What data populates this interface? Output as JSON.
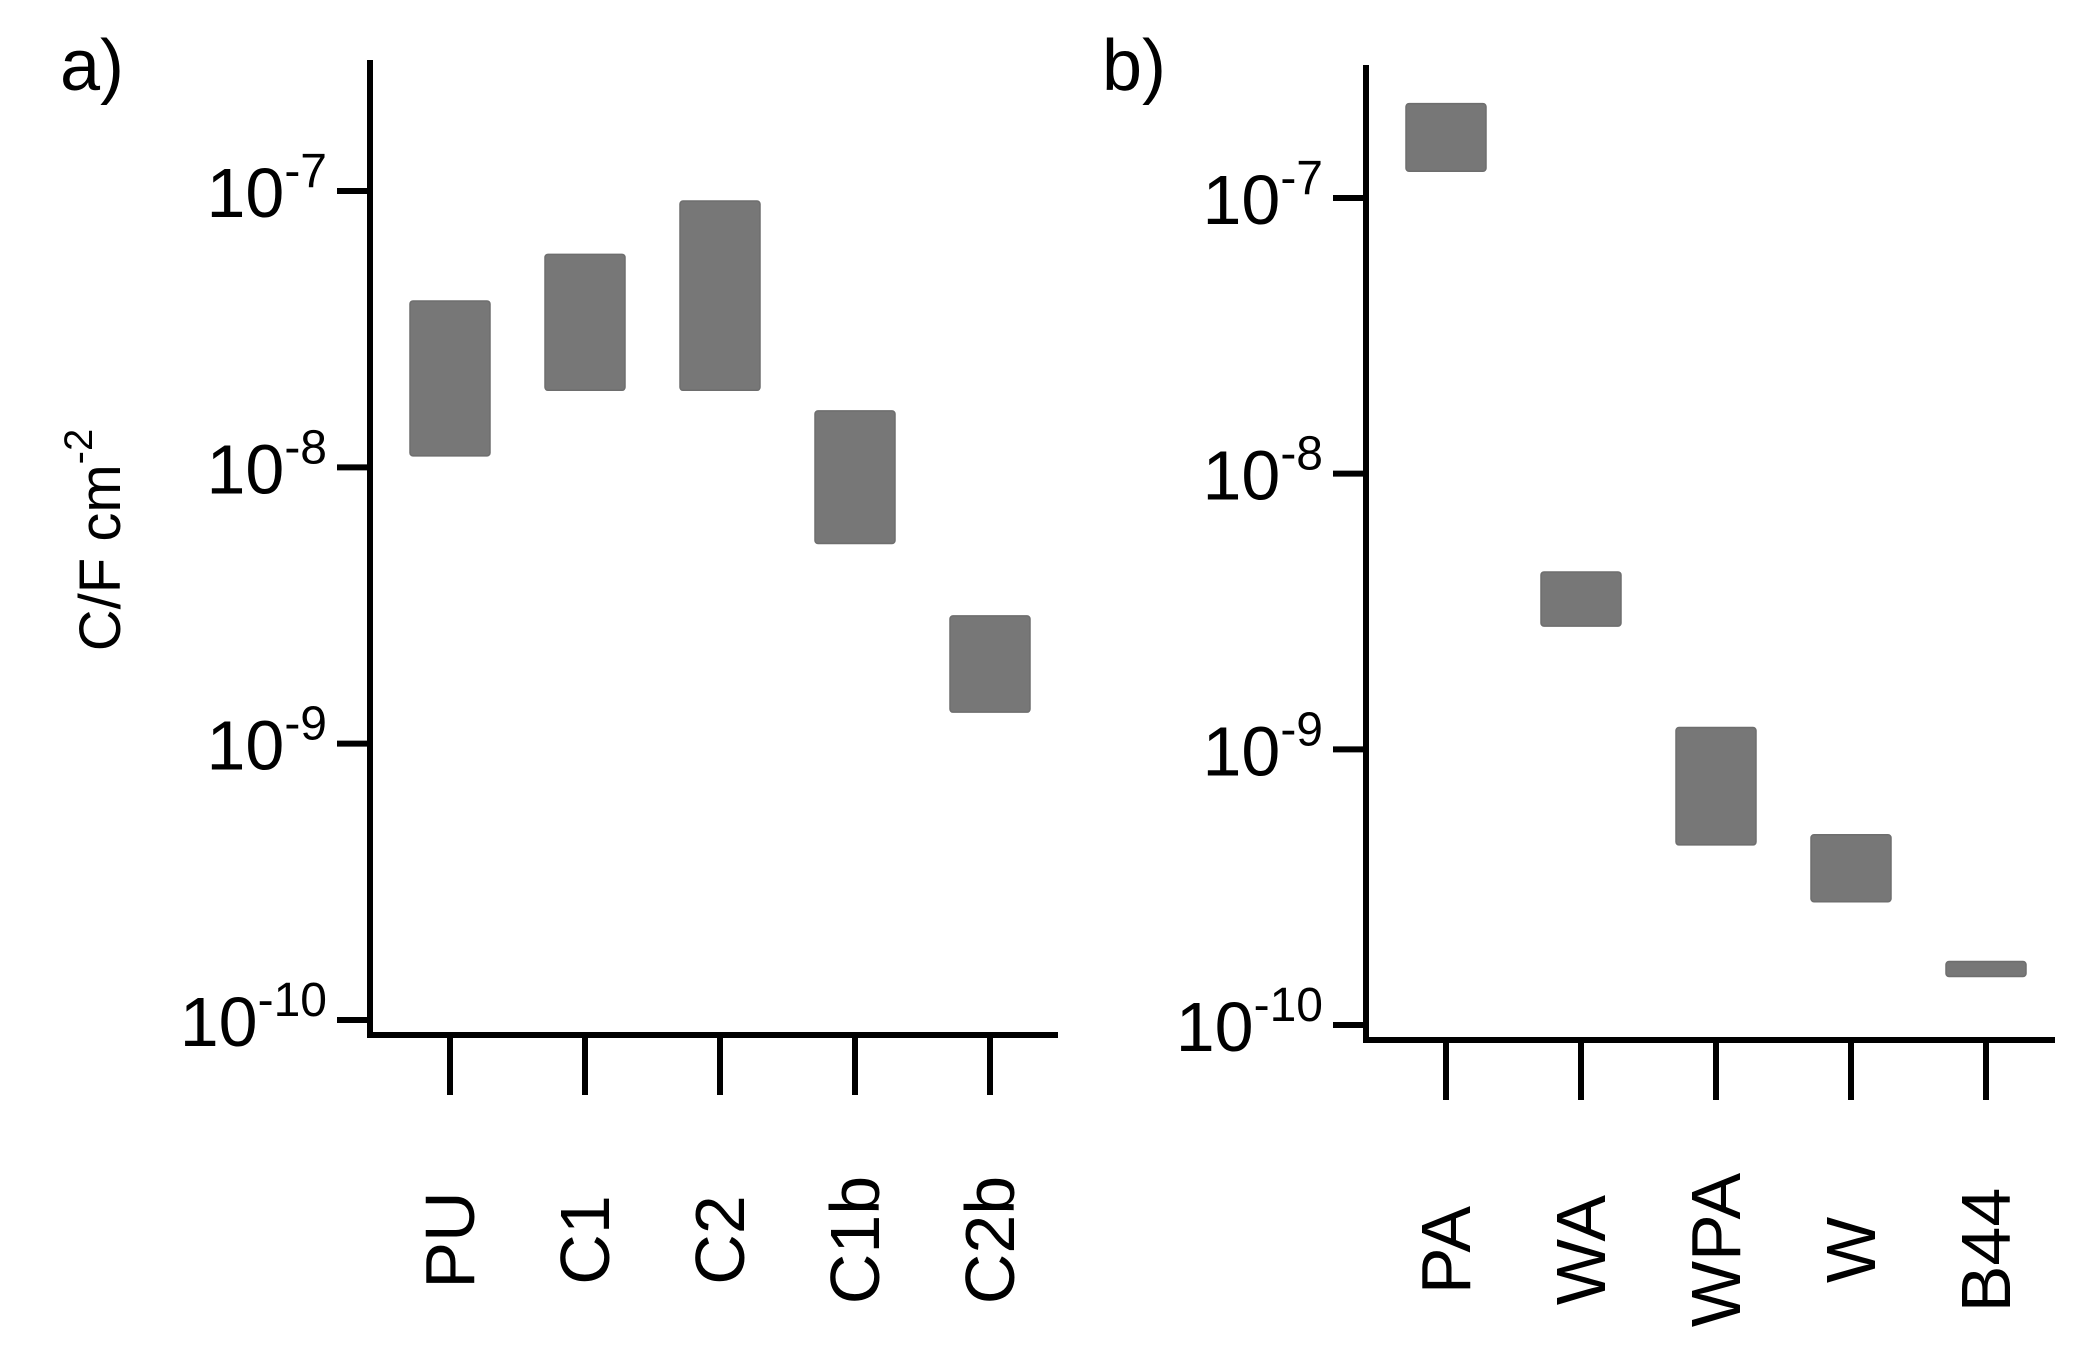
{
  "chart_data": [
    {
      "type": "bar",
      "panel_label": "a)",
      "scale": "log",
      "ylabel": "C/F cm",
      "ylabel_exponent": "-2",
      "ylim": [
        1e-10,
        3e-07
      ],
      "y_ticks": [
        {
          "value": 1e-07,
          "base": "10",
          "exp": "-7"
        },
        {
          "value": 1e-08,
          "base": "10",
          "exp": "-8"
        },
        {
          "value": 1e-09,
          "base": "10",
          "exp": "-9"
        },
        {
          "value": 1e-10,
          "base": "10",
          "exp": "-10"
        }
      ],
      "categories": [
        "PU",
        "C1",
        "C2",
        "C1b",
        "C2b"
      ],
      "ranges": [
        {
          "low": 1.1e-08,
          "high": 4e-08
        },
        {
          "low": 1.9e-08,
          "high": 5.9e-08
        },
        {
          "low": 1.9e-08,
          "high": 9.2e-08
        },
        {
          "low": 5.3e-09,
          "high": 1.6e-08
        },
        {
          "low": 1.3e-09,
          "high": 2.9e-09
        }
      ],
      "bar_color": "#777777"
    },
    {
      "type": "bar",
      "panel_label": "b)",
      "scale": "log",
      "ylabel": "",
      "ylim": [
        1e-10,
        3e-07
      ],
      "y_ticks": [
        {
          "value": 1e-07,
          "base": "10",
          "exp": "-7"
        },
        {
          "value": 1e-08,
          "base": "10",
          "exp": "-8"
        },
        {
          "value": 1e-09,
          "base": "10",
          "exp": "-9"
        },
        {
          "value": 1e-10,
          "base": "10",
          "exp": "-10"
        }
      ],
      "categories": [
        "PA",
        "WA",
        "WPA",
        "W",
        "B44"
      ],
      "ranges": [
        {
          "low": 1.25e-07,
          "high": 2.2e-07
        },
        {
          "low": 2.8e-09,
          "high": 4.4e-09
        },
        {
          "low": 4.5e-10,
          "high": 1.2e-09
        },
        {
          "low": 2.8e-10,
          "high": 4.9e-10
        },
        {
          "low": 1.5e-10,
          "high": 1.7e-10
        }
      ],
      "bar_color": "#777777"
    }
  ]
}
